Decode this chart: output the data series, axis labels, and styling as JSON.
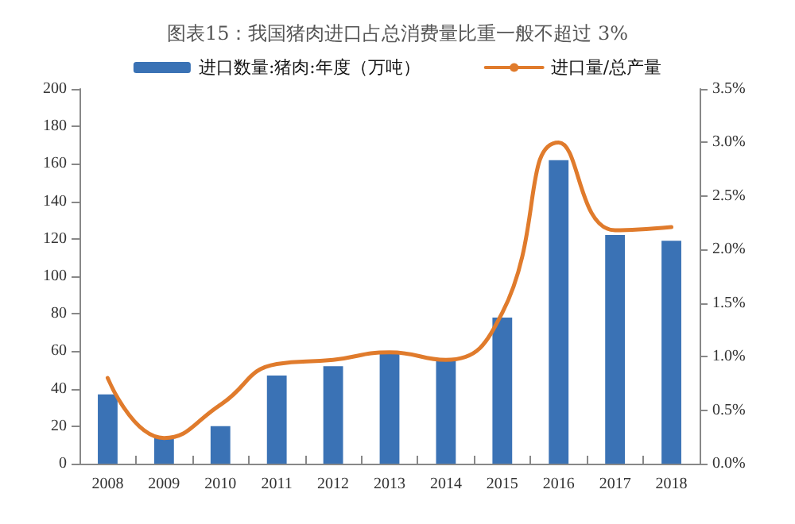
{
  "chart_data": {
    "type": "bar",
    "title": "图表15：我国猪肉进口占总消费量比重一般不超过 3%",
    "categories": [
      "2008",
      "2009",
      "2010",
      "2011",
      "2012",
      "2013",
      "2014",
      "2015",
      "2016",
      "2017",
      "2018"
    ],
    "series": [
      {
        "name": "进口数量:猪肉:年度（万吨）",
        "color": "#3a72b5",
        "values": [
          37,
          14,
          20,
          47,
          52,
          59,
          56,
          78,
          162,
          122,
          119
        ]
      },
      {
        "name": "进口量/总产量",
        "type": "line",
        "axis": "y2",
        "color": "#e07b2c",
        "values": [
          0.8,
          0.24,
          0.55,
          0.93,
          0.97,
          1.04,
          0.97,
          1.41,
          3.0,
          2.18,
          2.21
        ]
      }
    ],
    "ylim": [
      0,
      200
    ],
    "yticks": [
      0,
      20,
      40,
      60,
      80,
      100,
      120,
      140,
      160,
      180,
      200
    ],
    "y2lim": [
      0,
      3.5
    ],
    "y2ticks": [
      {
        "value": 0,
        "label": "0.0%"
      },
      {
        "value": 0.5,
        "label": "0.5%"
      },
      {
        "value": 1,
        "label": "1.0%"
      },
      {
        "value": 1.5,
        "label": "1.5%"
      },
      {
        "value": 2,
        "label": "2.0%"
      },
      {
        "value": 2.5,
        "label": "2.5%"
      },
      {
        "value": 3,
        "label": "3.0%"
      },
      {
        "value": 3.5,
        "label": "3.5%"
      }
    ],
    "grid": false,
    "legend": "top",
    "marker": "none",
    "line_style": "solid"
  }
}
